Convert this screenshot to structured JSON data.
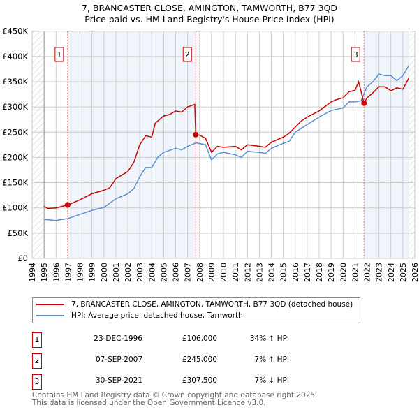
{
  "chart_data": {
    "type": "line",
    "title": "7, BRANCASTER CLOSE, AMINGTON, TAMWORTH, B77 3QD",
    "subtitle": "Price paid vs. HM Land Registry's House Price Index (HPI)",
    "xlim": [
      1994,
      2026
    ],
    "ylim": [
      0,
      450000
    ],
    "x_ticks": [
      "1994",
      "1995",
      "1996",
      "1997",
      "1998",
      "1999",
      "2000",
      "2001",
      "2002",
      "2003",
      "2004",
      "2005",
      "2006",
      "2007",
      "2008",
      "2009",
      "2010",
      "2011",
      "2012",
      "2013",
      "2014",
      "2015",
      "2016",
      "2017",
      "2018",
      "2019",
      "2020",
      "2021",
      "2022",
      "2023",
      "2024",
      "2025",
      "2026"
    ],
    "y_ticks": [
      {
        "v": 0,
        "label": "£0"
      },
      {
        "v": 50000,
        "label": "£50K"
      },
      {
        "v": 100000,
        "label": "£100K"
      },
      {
        "v": 150000,
        "label": "£150K"
      },
      {
        "v": 200000,
        "label": "£200K"
      },
      {
        "v": 250000,
        "label": "£250K"
      },
      {
        "v": 300000,
        "label": "£300K"
      },
      {
        "v": 350000,
        "label": "£350K"
      },
      {
        "v": 400000,
        "label": "£400K"
      },
      {
        "v": 450000,
        "label": "£450K"
      }
    ],
    "grid": true,
    "series": [
      {
        "name": "7, BRANCASTER CLOSE, AMINGTON, TAMWORTH, B77 3QD (detached house)",
        "color": "#cc0000",
        "x": [
          1995,
          1995.3,
          1996,
          1997,
          1998,
          1999,
          2000,
          2000.5,
          2001,
          2002,
          2002.5,
          2003,
          2003.5,
          2004,
          2004.3,
          2005,
          2005.5,
          2006,
          2006.5,
          2007,
          2007.6,
          2007.68,
          2008,
          2008.5,
          2009,
          2009.5,
          2010,
          2011,
          2011.5,
          2012,
          2013,
          2013.5,
          2014,
          2015,
          2015.5,
          2016,
          2016.5,
          2017,
          2018,
          2019,
          2019.5,
          2020,
          2020.5,
          2021,
          2021.3,
          2021.75,
          2022,
          2022.5,
          2023,
          2023.5,
          2024,
          2024.5,
          2025,
          2025.5
        ],
        "y": [
          103000,
          99000,
          100000,
          106000,
          116000,
          128000,
          135000,
          140000,
          158000,
          172000,
          190000,
          225000,
          243000,
          240000,
          268000,
          282000,
          285000,
          292000,
          290000,
          300000,
          305000,
          245000,
          244000,
          238000,
          210000,
          222000,
          220000,
          222000,
          215000,
          225000,
          222000,
          220000,
          230000,
          240000,
          248000,
          260000,
          272000,
          280000,
          292000,
          310000,
          315000,
          318000,
          330000,
          333000,
          350000,
          307500,
          318000,
          328000,
          340000,
          340000,
          332000,
          338000,
          335000,
          357000
        ]
      },
      {
        "name": "HPI: Average price, detached house, Tamworth",
        "color": "#5b8fd4",
        "x": [
          1995,
          1996,
          1997,
          1998,
          1999,
          2000,
          2001,
          2002,
          2002.5,
          2003,
          2003.5,
          2004,
          2004.5,
          2005,
          2006,
          2006.5,
          2007,
          2007.7,
          2008.5,
          2009,
          2009.5,
          2010,
          2011,
          2011.5,
          2012,
          2013,
          2013.5,
          2014,
          2015,
          2015.5,
          2016,
          2017,
          2018,
          2019,
          2020,
          2020.5,
          2021,
          2021.5,
          2022,
          2022.5,
          2023,
          2023.5,
          2024,
          2024.5,
          2025,
          2025.5
        ],
        "y": [
          77000,
          75000,
          79000,
          87000,
          95000,
          101000,
          118000,
          128000,
          138000,
          162000,
          180000,
          180000,
          200000,
          210000,
          218000,
          215000,
          222000,
          229000,
          225000,
          195000,
          207000,
          210000,
          205000,
          200000,
          212000,
          210000,
          208000,
          218000,
          228000,
          232000,
          250000,
          265000,
          280000,
          293000,
          298000,
          310000,
          310000,
          312000,
          340000,
          350000,
          365000,
          362000,
          362000,
          352000,
          362000,
          382000
        ]
      }
    ],
    "sales": [
      {
        "n": "1",
        "x": 1996.97,
        "y": 106000,
        "date": "23-DEC-1996",
        "price": "£106,000",
        "hpi": "34% ↑ HPI"
      },
      {
        "n": "2",
        "x": 2007.68,
        "y": 245000,
        "date": "07-SEP-2007",
        "price": "£245,000",
        "hpi": "7% ↑ HPI"
      },
      {
        "n": "3",
        "x": 2021.75,
        "y": 307500,
        "date": "30-SEP-2021",
        "price": "£307,500",
        "hpi": "7% ↓ HPI"
      }
    ]
  },
  "footer": {
    "line1": "Contains HM Land Registry data © Crown copyright and database right 2025.",
    "line2": "This data is licensed under the Open Government Licence v3.0."
  }
}
